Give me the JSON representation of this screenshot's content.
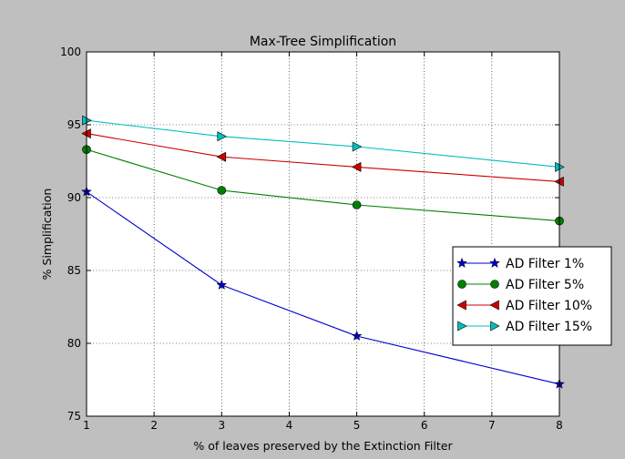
{
  "chart_data": {
    "type": "line",
    "title": "Max-Tree Simplification",
    "xlabel": "% of leaves preserved by the Extinction Filter",
    "ylabel": "% Simplification",
    "xlim": [
      1,
      8
    ],
    "ylim": [
      75,
      100
    ],
    "xticks": [
      1,
      2,
      3,
      4,
      5,
      6,
      7,
      8
    ],
    "yticks": [
      75,
      80,
      85,
      90,
      95,
      100
    ],
    "grid": true,
    "legend_position": "center-right",
    "series": [
      {
        "name": "AD Filter 1%",
        "color": "#0000cc",
        "marker": "star",
        "x": [
          1,
          3,
          5,
          8
        ],
        "y": [
          90.4,
          84.0,
          80.5,
          77.2
        ]
      },
      {
        "name": "AD Filter 5%",
        "color": "#008000",
        "marker": "circle",
        "x": [
          1,
          3,
          5,
          8
        ],
        "y": [
          93.3,
          90.5,
          89.5,
          88.4
        ]
      },
      {
        "name": "AD Filter 10%",
        "color": "#cc0000",
        "marker": "triangle-left",
        "x": [
          1,
          3,
          5,
          8
        ],
        "y": [
          94.4,
          92.8,
          92.1,
          91.1
        ]
      },
      {
        "name": "AD Filter 15%",
        "color": "#00bfbf",
        "marker": "triangle-right",
        "x": [
          1,
          3,
          5,
          8
        ],
        "y": [
          95.3,
          94.2,
          93.5,
          92.1
        ]
      }
    ]
  }
}
